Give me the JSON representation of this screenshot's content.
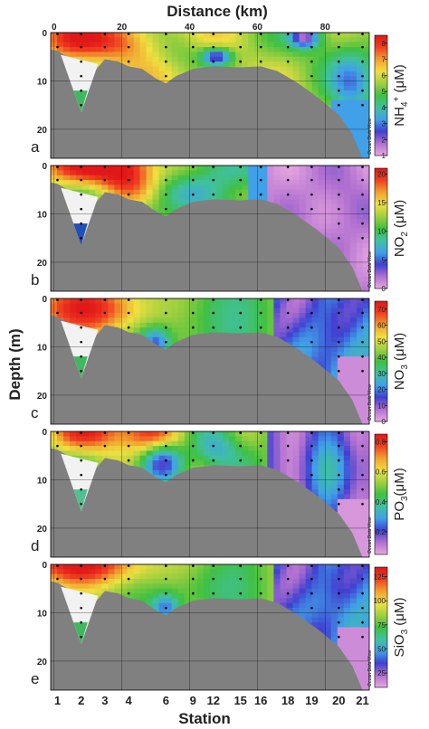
{
  "chart_data": {
    "type": "heatmap",
    "title": "Distance (km)",
    "xlabel": "Station",
    "ylabel": "Depth (m)",
    "distance_ticks": [
      "0",
      "20",
      "40",
      "60",
      "80"
    ],
    "distance_values": [
      0,
      20,
      40,
      60,
      80
    ],
    "xlim_km": [
      -1,
      93
    ],
    "ylim_m": [
      0,
      26
    ],
    "depth_ticks": [
      "0",
      "10",
      "20"
    ],
    "depth_values": [
      0,
      10,
      20
    ],
    "stations": [
      {
        "label": "1",
        "km": 1
      },
      {
        "label": "2",
        "km": 8
      },
      {
        "label": "3",
        "km": 15
      },
      {
        "label": "4",
        "km": 22
      },
      {
        "label": "6",
        "km": 33
      },
      {
        "label": "9",
        "km": 41
      },
      {
        "label": "12",
        "km": 47
      },
      {
        "label": "15",
        "km": 55
      },
      {
        "label": "16",
        "km": 61
      },
      {
        "label": "18",
        "km": 69
      },
      {
        "label": "19",
        "km": 76
      },
      {
        "label": "20",
        "km": 84
      },
      {
        "label": "21",
        "km": 91
      }
    ],
    "bathymetry_km_m": [
      [
        -1,
        3.5
      ],
      [
        1,
        3.8
      ],
      [
        4,
        5
      ],
      [
        8,
        16.5
      ],
      [
        12,
        8
      ],
      [
        15,
        5.5
      ],
      [
        19,
        6
      ],
      [
        22,
        7
      ],
      [
        26,
        7.5
      ],
      [
        30,
        9.5
      ],
      [
        33,
        10.5
      ],
      [
        36,
        9
      ],
      [
        41,
        7.5
      ],
      [
        47,
        7
      ],
      [
        55,
        7.2
      ],
      [
        61,
        7
      ],
      [
        66,
        8
      ],
      [
        72,
        10.5
      ],
      [
        78,
        13.5
      ],
      [
        84,
        17
      ],
      [
        88,
        21
      ],
      [
        91,
        26
      ]
    ],
    "panels": [
      {
        "letter": "a",
        "variable": "NH",
        "unit_sub": "4",
        "unit_sup": "+",
        "unit_suffix": " (μM)",
        "ticks": [
          "1",
          "2",
          "3",
          "4",
          "5",
          "6",
          "7",
          "8"
        ],
        "range": [
          1,
          8.5
        ]
      },
      {
        "letter": "b",
        "variable": "NO",
        "unit_sub": "2",
        "unit_sup": "",
        "unit_suffix": " (μM)",
        "ticks": [
          "0",
          "5",
          "10",
          "15",
          "20"
        ],
        "range": [
          0,
          21
        ]
      },
      {
        "letter": "c",
        "variable": "NO",
        "unit_sub": "3",
        "unit_sup": "",
        "unit_suffix": " (μM)",
        "ticks": [
          "0",
          "10",
          "20",
          "30",
          "40",
          "50",
          "60",
          "70"
        ],
        "range": [
          0,
          75
        ]
      },
      {
        "letter": "d",
        "variable": "PO",
        "unit_sub": "3",
        "unit_sup": "",
        "unit_suffix": "(μM)",
        "ticks": [
          "0.2",
          "0.4",
          "0.6",
          "0.8"
        ],
        "range": [
          0.05,
          0.85
        ]
      },
      {
        "letter": "e",
        "variable": "SiO",
        "unit_sub": "3",
        "unit_sup": "",
        "unit_suffix": " (μM)",
        "ticks": [
          "25",
          "50",
          "75",
          "100",
          "125"
        ],
        "range": [
          10,
          135
        ]
      }
    ],
    "colormap": [
      "#e8a8e0",
      "#b070d0",
      "#4040d0",
      "#40a0e8",
      "#40c0a0",
      "#40c040",
      "#a0d040",
      "#f0e040",
      "#f0a030",
      "#f04020",
      "#e01818"
    ],
    "watermark": "Ocean Data View",
    "seafloor_color": "#808080",
    "grid": true
  }
}
